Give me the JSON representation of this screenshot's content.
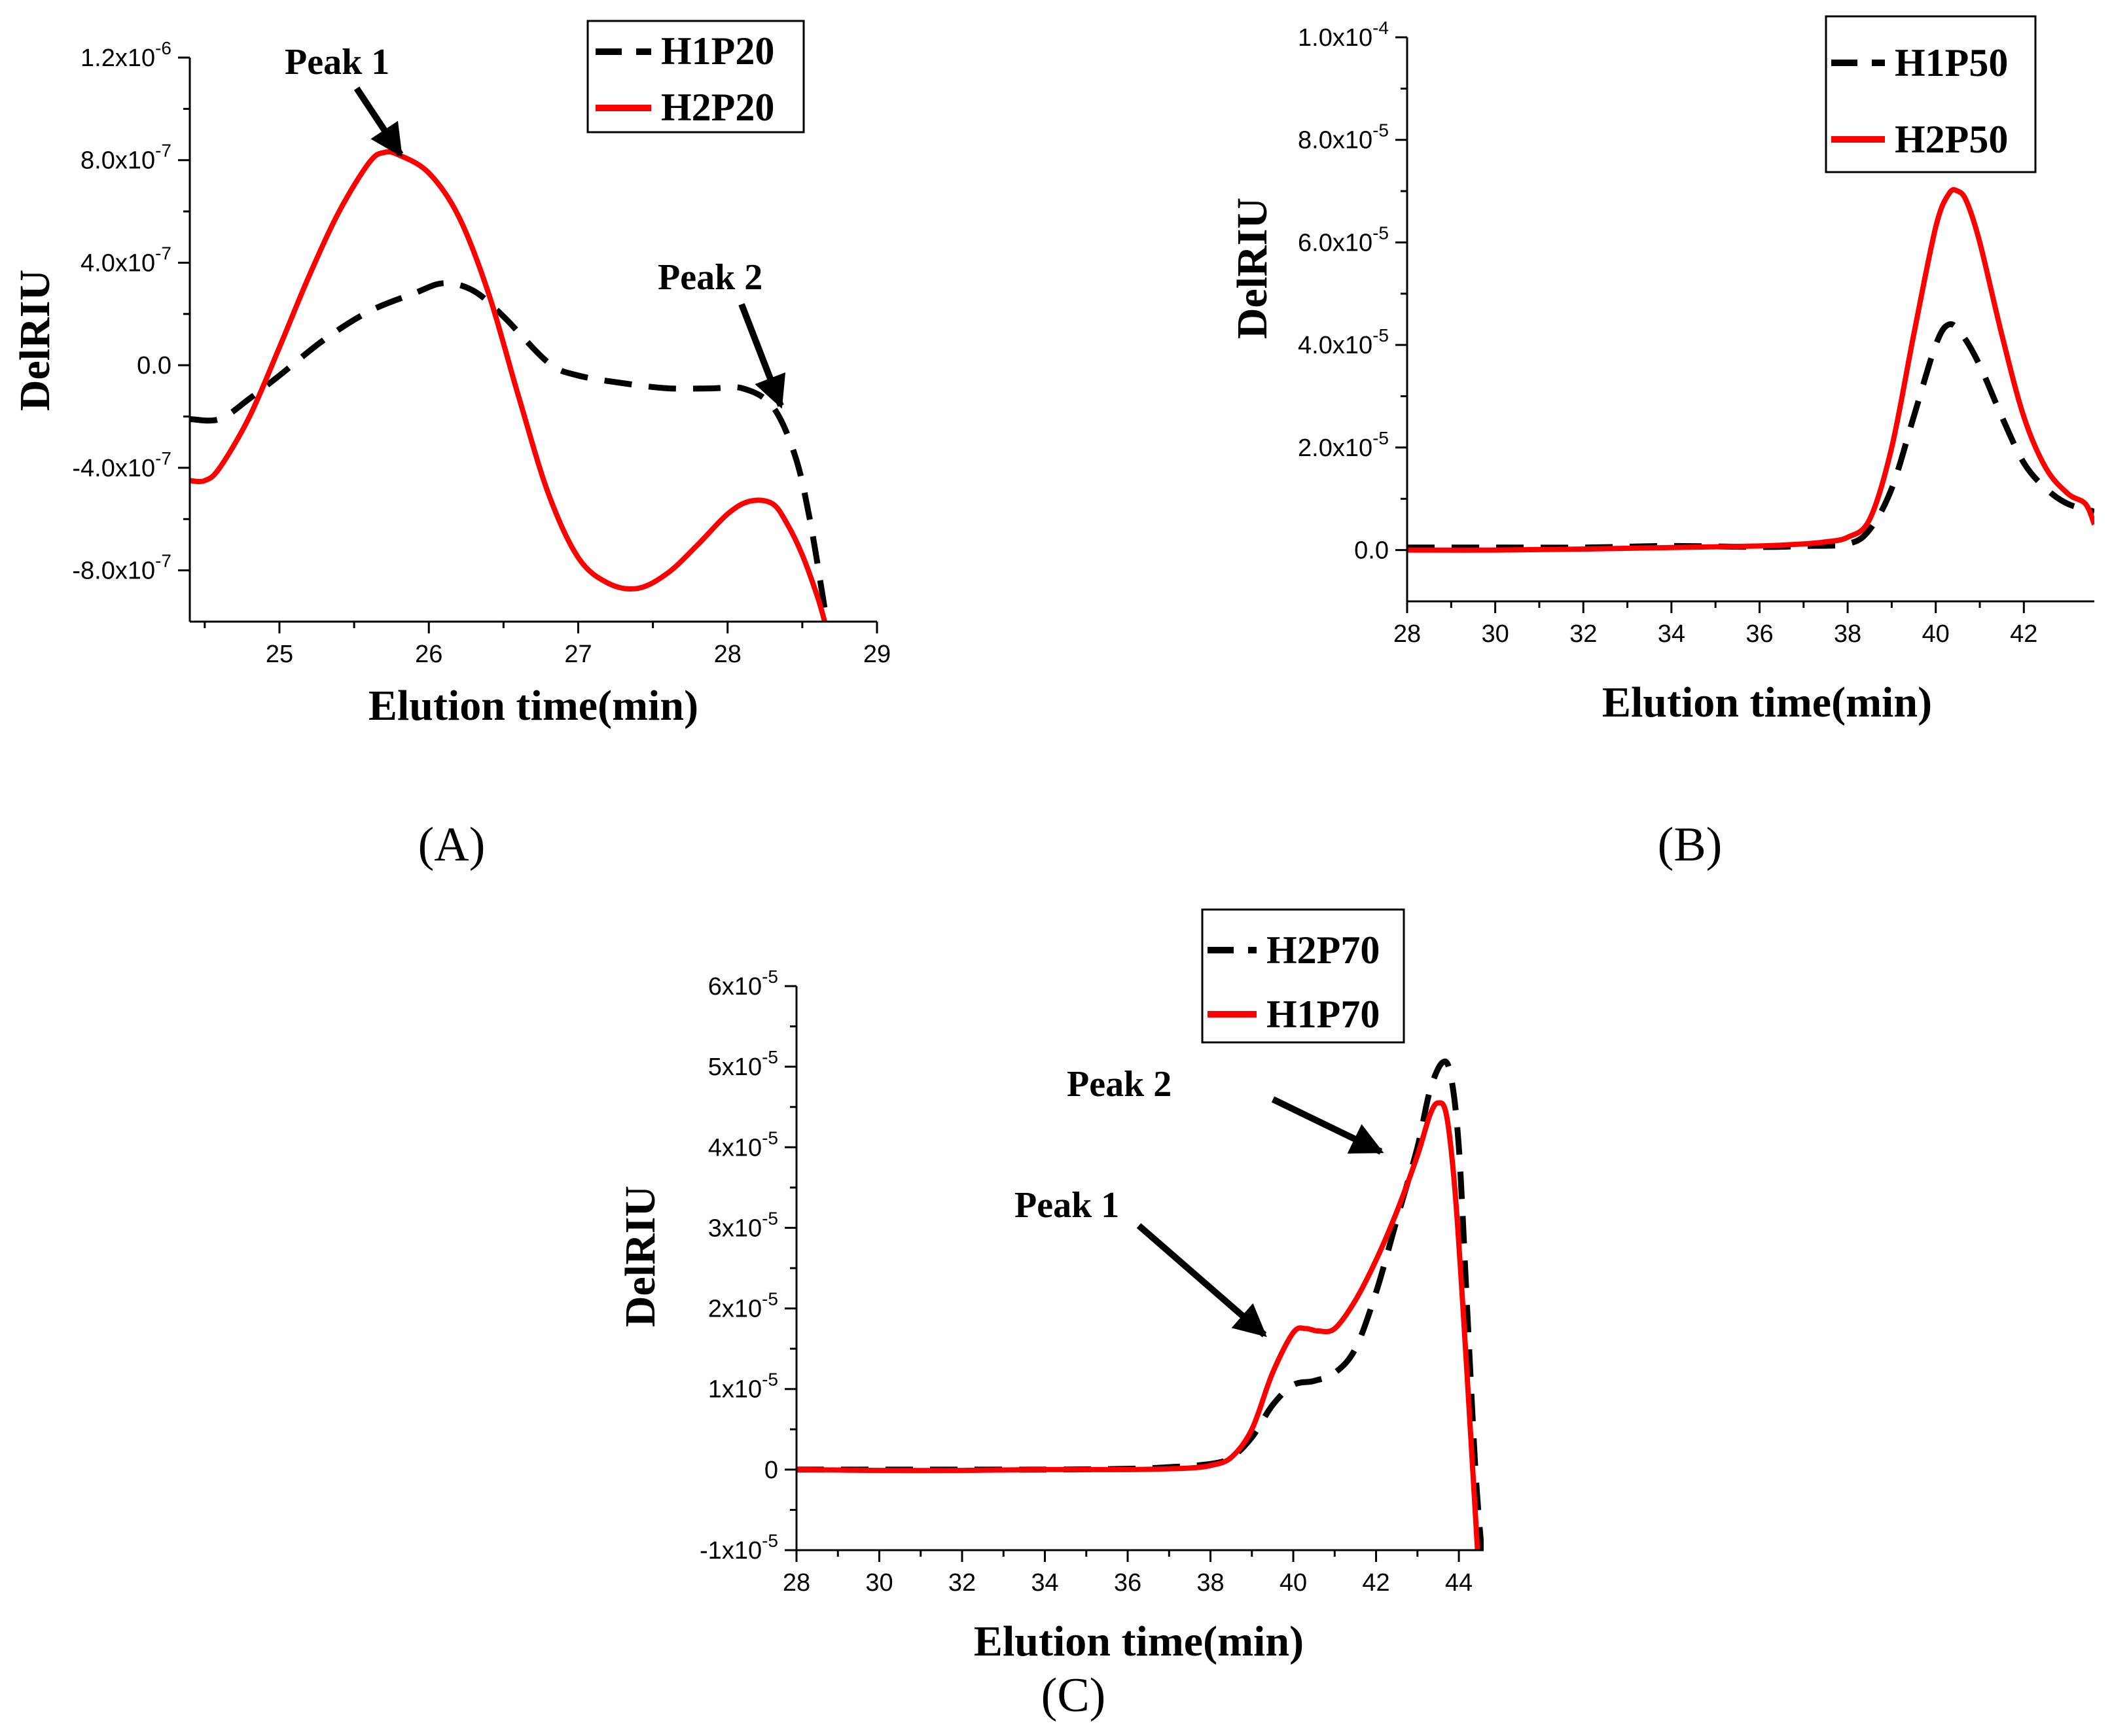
{
  "colors": {
    "black": "#000000",
    "red": "#ff0000"
  },
  "chart_data": [
    {
      "id": "A",
      "type": "line",
      "panel_label": "(A)",
      "xlabel": "Elution time(min)",
      "ylabel": "DelRIU",
      "xlim": [
        24.4,
        29.0
      ],
      "ylim": [
        -1e-06,
        1.2e-06
      ],
      "xticks": [
        {
          "v": 25,
          "label": "25"
        },
        {
          "v": 26,
          "label": "26"
        },
        {
          "v": 27,
          "label": "27"
        },
        {
          "v": 28,
          "label": "28"
        },
        {
          "v": 29,
          "label": "29"
        }
      ],
      "yticks": [
        {
          "v": 1.2e-06,
          "base": "1.2x10",
          "exp": "-6"
        },
        {
          "v": 8e-07,
          "base": "8.0x10",
          "exp": "-7"
        },
        {
          "v": 4e-07,
          "base": "4.0x10",
          "exp": "-7"
        },
        {
          "v": 0,
          "base": "0.0",
          "exp": ""
        },
        {
          "v": -4e-07,
          "base": "-4.0x10",
          "exp": "-7"
        },
        {
          "v": -8e-07,
          "base": "-8.0x10",
          "exp": "-7"
        }
      ],
      "legend": {
        "position": "top-right"
      },
      "series": [
        {
          "name": "H1P20",
          "color": "#000000",
          "dash": true,
          "x": [
            24.4,
            24.6,
            24.8,
            25.0,
            25.3,
            25.6,
            25.9,
            26.1,
            26.3,
            26.5,
            26.8,
            27.0,
            27.3,
            27.6,
            27.9,
            28.1,
            28.3,
            28.45,
            28.55,
            28.65
          ],
          "y": [
            -2.1e-07,
            -2.1e-07,
            -1.3e-07,
            -4e-08,
            1e-07,
            2.1e-07,
            2.8e-07,
            3.2e-07,
            2.9e-07,
            1.9e-07,
            1e-08,
            -4e-08,
            -7e-08,
            -9e-08,
            -9e-08,
            -9e-08,
            -1.6e-07,
            -3.5e-07,
            -6e-07,
            -9.5e-07
          ]
        },
        {
          "name": "H2P20",
          "color": "#ff0000",
          "dash": false,
          "x": [
            24.4,
            24.5,
            24.6,
            24.8,
            25.0,
            25.2,
            25.4,
            25.6,
            25.7,
            25.8,
            26.0,
            26.2,
            26.4,
            26.6,
            26.8,
            27.0,
            27.2,
            27.4,
            27.6,
            27.8,
            28.0,
            28.15,
            28.3,
            28.4,
            28.5,
            28.6,
            28.65
          ],
          "y": [
            -4.5e-07,
            -4.5e-07,
            -4e-07,
            -2e-07,
            7e-08,
            3.5e-07,
            6e-07,
            7.9e-07,
            8.3e-07,
            8.2e-07,
            7.5e-07,
            5.8e-07,
            2.8e-07,
            -1.2e-07,
            -5e-07,
            -7.5e-07,
            -8.5e-07,
            -8.7e-07,
            -8.1e-07,
            -7e-07,
            -5.8e-07,
            -5.3e-07,
            -5.4e-07,
            -6.2e-07,
            -7.4e-07,
            -9e-07,
            -1e-06
          ]
        }
      ],
      "annotations": [
        {
          "text": "Peak 1"
        },
        {
          "text": "Peak 2"
        }
      ]
    },
    {
      "id": "B",
      "type": "line",
      "panel_label": "(B)",
      "xlabel": "Elution time(min)",
      "ylabel": "DelRIU",
      "xlim": [
        28,
        43.6
      ],
      "ylim": [
        -1e-05,
        0.0001
      ],
      "xticks": [
        {
          "v": 28,
          "label": "28"
        },
        {
          "v": 30,
          "label": "30"
        },
        {
          "v": 32,
          "label": "32"
        },
        {
          "v": 34,
          "label": "34"
        },
        {
          "v": 36,
          "label": "36"
        },
        {
          "v": 38,
          "label": "38"
        },
        {
          "v": 40,
          "label": "40"
        },
        {
          "v": 42,
          "label": "42"
        }
      ],
      "yticks": [
        {
          "v": 0.0001,
          "base": "1.0x10",
          "exp": "-4"
        },
        {
          "v": 8e-05,
          "base": "8.0x10",
          "exp": "-5"
        },
        {
          "v": 6e-05,
          "base": "6.0x10",
          "exp": "-5"
        },
        {
          "v": 4e-05,
          "base": "4.0x10",
          "exp": "-5"
        },
        {
          "v": 2e-05,
          "base": "2.0x10",
          "exp": "-5"
        },
        {
          "v": 0,
          "base": "0.0",
          "exp": ""
        }
      ],
      "legend": {
        "position": "top-right"
      },
      "series": [
        {
          "name": "H1P50",
          "color": "#000000",
          "dash": true,
          "x": [
            28,
            30,
            32,
            34,
            36,
            37,
            38,
            38.5,
            39,
            39.5,
            40,
            40.3,
            40.6,
            41,
            41.5,
            42,
            42.5,
            43,
            43.6
          ],
          "y": [
            5e-07,
            5e-07,
            5e-07,
            8e-07,
            6e-07,
            8e-07,
            1.2e-06,
            4e-06,
            1.2e-05,
            2.6e-05,
            4e-05,
            4.4e-05,
            4.2e-05,
            3.6e-05,
            2.6e-05,
            1.7e-05,
            1.2e-05,
            9e-06,
            7.5e-06
          ]
        },
        {
          "name": "H2P50",
          "color": "#ff0000",
          "dash": false,
          "x": [
            28,
            30,
            32,
            34,
            36,
            37,
            37.5,
            38,
            38.5,
            39,
            39.5,
            40,
            40.3,
            40.5,
            40.7,
            41,
            41.5,
            42,
            42.5,
            43,
            43.4,
            43.6
          ],
          "y": [
            0,
            0,
            2e-07,
            5e-07,
            8e-07,
            1.2e-06,
            1.6e-06,
            2.5e-06,
            6e-06,
            2e-05,
            4.2e-05,
            6.3e-05,
            6.95e-05,
            7e-05,
            6.8e-05,
            6e-05,
            4.2e-05,
            2.6e-05,
            1.6e-05,
            1.1e-05,
            9e-06,
            5e-06
          ]
        }
      ]
    },
    {
      "id": "C",
      "type": "line",
      "panel_label": "(C)",
      "xlabel": "Elution time(min)",
      "ylabel": "DelRIU",
      "xlim": [
        28,
        44.6
      ],
      "ylim": [
        -1e-05,
        6e-05
      ],
      "xticks": [
        {
          "v": 28,
          "label": "28"
        },
        {
          "v": 30,
          "label": "30"
        },
        {
          "v": 32,
          "label": "32"
        },
        {
          "v": 34,
          "label": "34"
        },
        {
          "v": 36,
          "label": "36"
        },
        {
          "v": 38,
          "label": "38"
        },
        {
          "v": 40,
          "label": "40"
        },
        {
          "v": 42,
          "label": "42"
        },
        {
          "v": 44,
          "label": "44"
        }
      ],
      "yticks": [
        {
          "v": 6e-05,
          "base": "6x10",
          "exp": "-5"
        },
        {
          "v": 5e-05,
          "base": "5x10",
          "exp": "-5"
        },
        {
          "v": 4e-05,
          "base": "4x10",
          "exp": "-5"
        },
        {
          "v": 3e-05,
          "base": "3x10",
          "exp": "-5"
        },
        {
          "v": 2e-05,
          "base": "2x10",
          "exp": "-5"
        },
        {
          "v": 1e-05,
          "base": "1x10",
          "exp": "-5"
        },
        {
          "v": 0,
          "base": "0",
          "exp": ""
        },
        {
          "v": -1e-05,
          "base": "-1x10",
          "exp": "-5"
        }
      ],
      "legend": {
        "position": "top-right"
      },
      "series": [
        {
          "name": "H2P70",
          "color": "#000000",
          "dash": true,
          "x": [
            28,
            30,
            32,
            34,
            36,
            37,
            38,
            38.5,
            39,
            39.5,
            40,
            40.5,
            41,
            41.5,
            42,
            42.5,
            43,
            43.3,
            43.6,
            43.8,
            44,
            44.2,
            44.4,
            44.55
          ],
          "y": [
            0,
            0,
            0,
            0,
            1e-07,
            3e-07,
            7e-07,
            1.5e-06,
            4e-06,
            8e-06,
            1.05e-05,
            1.1e-05,
            1.2e-05,
            1.5e-05,
            2.2e-05,
            3.1e-05,
            4e-05,
            4.7e-05,
            5.05e-05,
            4.9e-05,
            4e-05,
            2e-05,
            0,
            -1e-05
          ]
        },
        {
          "name": "H1P70",
          "color": "#ff0000",
          "dash": false,
          "x": [
            28,
            30,
            32,
            34,
            36,
            37,
            37.5,
            38,
            38.5,
            39,
            39.5,
            40,
            40.3,
            40.6,
            41,
            41.5,
            42,
            42.5,
            43,
            43.3,
            43.5,
            43.7,
            43.9,
            44.1,
            44.3,
            44.45
          ],
          "y": [
            0,
            -1e-07,
            -1e-07,
            0,
            0,
            1e-07,
            2e-07,
            5e-07,
            1.5e-06,
            5e-06,
            1.2e-05,
            1.7e-05,
            1.75e-05,
            1.72e-05,
            1.75e-05,
            2.1e-05,
            2.6e-05,
            3.2e-05,
            3.9e-05,
            4.4e-05,
            4.55e-05,
            4.4e-05,
            3.5e-05,
            2e-05,
            3e-06,
            -1e-05
          ]
        }
      ],
      "annotations": [
        {
          "text": "Peak 1"
        },
        {
          "text": "Peak 2"
        }
      ]
    }
  ]
}
